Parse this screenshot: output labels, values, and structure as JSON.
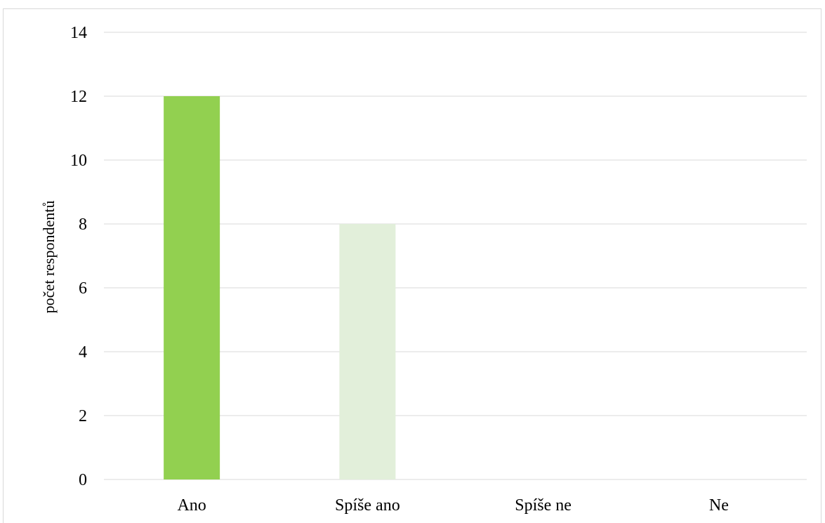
{
  "chart_data": {
    "type": "bar",
    "title": "",
    "xlabel": "",
    "ylabel": "počet respondentů",
    "categories": [
      "Ano",
      "Spíše ano",
      "Spíše ne",
      "Ne"
    ],
    "values": [
      12,
      8,
      0,
      0
    ],
    "bar_colors": [
      "#92d050",
      "#e2efda",
      "#e2efda",
      "#e2efda"
    ],
    "ylim": [
      0,
      14
    ],
    "yticks": [
      "0",
      "2",
      "4",
      "6",
      "8",
      "10",
      "12",
      "14"
    ],
    "grid": true,
    "gridline_color": "#d9d9d9",
    "legend": "none"
  }
}
